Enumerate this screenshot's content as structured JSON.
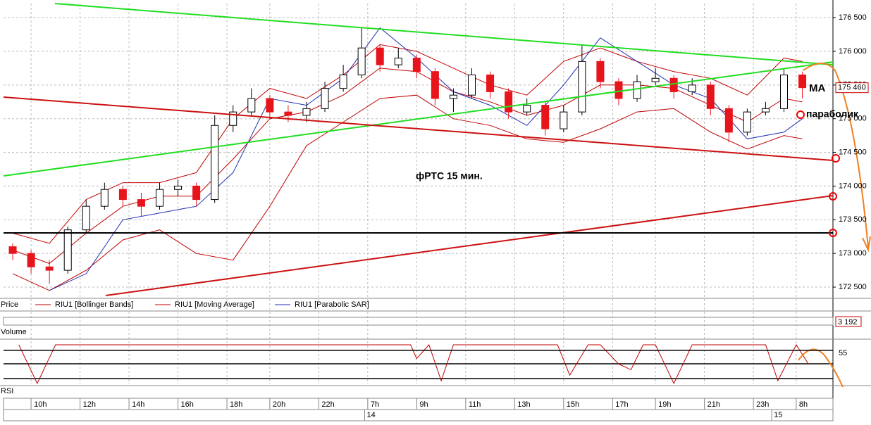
{
  "chart_data": {
    "type": "candlestick",
    "title": "фРТС  15 мин.",
    "panel_label": "Price",
    "x": [
      1,
      4,
      7,
      10,
      13,
      16,
      19,
      22,
      25,
      28,
      31,
      34,
      37,
      40,
      43,
      46,
      49,
      52,
      55,
      58,
      61,
      64,
      67,
      70,
      73,
      76,
      79,
      82,
      85,
      88,
      91,
      94,
      97,
      100,
      103,
      106,
      109,
      112,
      115,
      118,
      121,
      124,
      127,
      130
    ],
    "open": [
      173100,
      173000,
      172800,
      172750,
      173350,
      173700,
      173950,
      173800,
      173700,
      173950,
      174000,
      173800,
      174900,
      175100,
      175300,
      175100,
      175050,
      175150,
      175450,
      175650,
      176050,
      175800,
      175900,
      175700,
      175300,
      175350,
      175650,
      175400,
      175100,
      175200,
      174850,
      175100,
      175850,
      175550,
      175300,
      175550,
      175600,
      175400,
      175500,
      175150,
      174800,
      175100,
      175150,
      175650
    ],
    "high": [
      173150,
      173050,
      172900,
      173400,
      173800,
      174050,
      174000,
      173900,
      174050,
      174100,
      174050,
      175050,
      175200,
      175450,
      175350,
      175200,
      175250,
      175550,
      175800,
      176350,
      176100,
      176050,
      175950,
      175750,
      175450,
      175750,
      175700,
      175450,
      175300,
      175250,
      175200,
      176100,
      175900,
      175600,
      175650,
      175750,
      175650,
      175600,
      175550,
      175200,
      175150,
      175250,
      175750,
      175700
    ],
    "low": [
      172900,
      172700,
      172550,
      172700,
      173300,
      173650,
      173700,
      173550,
      173650,
      173850,
      173700,
      173750,
      174800,
      175050,
      175000,
      174950,
      174950,
      175100,
      175400,
      175600,
      175700,
      175750,
      175600,
      175200,
      175100,
      175300,
      175300,
      175000,
      175050,
      174750,
      174800,
      175050,
      175450,
      175200,
      175250,
      175500,
      175300,
      175350,
      175050,
      174650,
      174750,
      175050,
      175100,
      175300
    ],
    "close": [
      173000,
      172800,
      172750,
      173350,
      173700,
      173950,
      173800,
      173700,
      173950,
      174000,
      173800,
      174900,
      175100,
      175300,
      175100,
      175050,
      175150,
      175450,
      175650,
      176050,
      175800,
      175900,
      175700,
      175300,
      175350,
      175650,
      175400,
      175100,
      175200,
      174850,
      175100,
      175850,
      175550,
      175300,
      175550,
      175600,
      175400,
      175500,
      175150,
      174800,
      175100,
      175150,
      175650,
      175460
    ],
    "up_color": "#ffffff",
    "down_color": "#e8141c",
    "xlim": [
      -0.5,
      135
    ],
    "ylim": [
      172375,
      176710
    ],
    "yticks": [
      {
        "value": 172500,
        "label": "172 500"
      },
      {
        "value": 173000,
        "label": "173 000"
      },
      {
        "value": 173500,
        "label": "173 500"
      },
      {
        "value": 174000,
        "label": "174 000"
      },
      {
        "value": 174500,
        "label": "174 500"
      },
      {
        "value": 175000,
        "label": "175 000"
      },
      {
        "value": 175500,
        "label": "175 500"
      },
      {
        "value": 176000,
        "label": "176 000"
      },
      {
        "value": 176500,
        "label": "176 500"
      }
    ],
    "xticks": [
      {
        "value": 4,
        "label": "10h"
      },
      {
        "value": 12,
        "label": "12h"
      },
      {
        "value": 20,
        "label": "14h"
      },
      {
        "value": 28,
        "label": "16h"
      },
      {
        "value": 36,
        "label": "18h"
      },
      {
        "value": 43,
        "label": "20h"
      },
      {
        "value": 51,
        "label": "22h"
      },
      {
        "value": 59,
        "label": "7h"
      },
      {
        "value": 67,
        "label": "9h"
      },
      {
        "value": 75,
        "label": "11h"
      },
      {
        "value": 83,
        "label": "13h"
      },
      {
        "value": 91,
        "label": "15h"
      },
      {
        "value": 99,
        "label": "17h"
      },
      {
        "value": 106,
        "label": "19h"
      },
      {
        "value": 114,
        "label": "21h"
      },
      {
        "value": 122,
        "label": "23h"
      },
      {
        "value": 129,
        "label": "8h"
      }
    ],
    "date_ticks": [
      {
        "value": 58.5,
        "label": "14"
      },
      {
        "value": 125,
        "label": "15"
      }
    ],
    "grid": true,
    "last_price": {
      "value": 175460,
      "label": "175 460"
    },
    "annotations": [
      "MA",
      "параболик"
    ],
    "indicators": {
      "x": [
        1,
        7,
        13,
        19,
        25,
        31,
        37,
        43,
        49,
        55,
        61,
        67,
        73,
        79,
        85,
        91,
        97,
        103,
        109,
        115,
        121,
        127,
        130
      ],
      "series": [
        {
          "name": "RIU1 [Bollinger Bands]",
          "color": "#c00000",
          "upper": [
            173300,
            173150,
            173800,
            174050,
            174050,
            174200,
            175000,
            175450,
            175300,
            175650,
            176100,
            176000,
            175750,
            175500,
            175350,
            175850,
            176050,
            175850,
            175700,
            175600,
            175350,
            175900,
            175850
          ],
          "lower": [
            172700,
            172450,
            172750,
            173200,
            173350,
            173000,
            172900,
            173700,
            174600,
            174950,
            175300,
            175350,
            175000,
            174900,
            174700,
            174650,
            174850,
            175100,
            175150,
            174800,
            174550,
            174750,
            174700
          ]
        },
        {
          "name": "RIU1 [Moving Average]",
          "color": "#c00000",
          "values": [
            173050,
            172850,
            173300,
            173700,
            173850,
            173850,
            174400,
            175000,
            175100,
            175350,
            175750,
            175700,
            175400,
            175250,
            175050,
            175200,
            175500,
            175500,
            175450,
            175200,
            174950,
            175300,
            175250
          ]
        },
        {
          "name": "RIU1 [Parabolic SAR]",
          "color": "#1f2fb0",
          "values": [
            null,
            172450,
            172700,
            173500,
            173600,
            173700,
            174200,
            175300,
            175200,
            175600,
            176350,
            175900,
            175400,
            175200,
            174900,
            175500,
            176200,
            175850,
            175500,
            175300,
            174700,
            174800,
            175000
          ]
        }
      ]
    }
  },
  "volume": {
    "label": "Volume",
    "last": "3 192"
  },
  "rsi": {
    "label": "RSI",
    "color": "#c00000",
    "ylim": [
      43,
      57
    ],
    "yticks": [
      55
    ],
    "x": [
      2,
      5,
      8,
      12,
      20,
      40,
      66,
      67,
      69,
      71,
      73,
      75,
      90,
      92,
      95,
      97,
      100,
      102,
      104,
      106,
      109,
      112,
      114,
      124,
      126,
      129,
      131
    ],
    "values": [
      57,
      43,
      57,
      57,
      57,
      57,
      57,
      52,
      57,
      44,
      57,
      57,
      57,
      46,
      57,
      57,
      50,
      48,
      57,
      57,
      43,
      57,
      57,
      57,
      44,
      57,
      50
    ]
  }
}
